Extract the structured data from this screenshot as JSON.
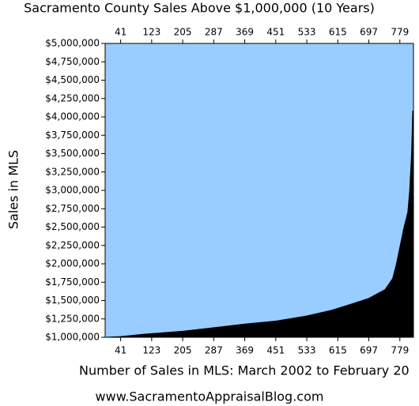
{
  "chart_data": {
    "type": "area",
    "title": "Sacramento County Sales Above $1,000,000 (10 Years)",
    "x_label": "Number of Sales in MLS: March 2002 to February 20",
    "y_label": "Sales in MLS",
    "footer": "www.SacramentoAppraisalBlog.com",
    "background": "#99ccff",
    "color": "#000000",
    "x": [
      0,
      41,
      100,
      200,
      287,
      369,
      451,
      533,
      600,
      650,
      697,
      740,
      760,
      770,
      780,
      790,
      800,
      805,
      810,
      813,
      815
    ],
    "values": [
      1000000,
      1010000,
      1040000,
      1080000,
      1130000,
      1180000,
      1220000,
      1290000,
      1370000,
      1450000,
      1530000,
      1650000,
      1800000,
      2000000,
      2250000,
      2500000,
      2700000,
      3000000,
      3500000,
      4080000,
      4080000
    ],
    "xlim": [
      0,
      815
    ],
    "ylim": [
      1000000,
      5000000
    ],
    "xticks": [
      41,
      123,
      205,
      287,
      369,
      451,
      533,
      615,
      697,
      779
    ],
    "yticks": [
      {
        "value": 1000000,
        "label": "$1,000,000"
      },
      {
        "value": 1250000,
        "label": "$1,250,000"
      },
      {
        "value": 1500000,
        "label": "$1,500,000"
      },
      {
        "value": 1750000,
        "label": "$1,750,000"
      },
      {
        "value": 2000000,
        "label": "$2,000,000"
      },
      {
        "value": 2250000,
        "label": "$2,250,000"
      },
      {
        "value": 2500000,
        "label": "$2,500,000"
      },
      {
        "value": 2750000,
        "label": "$2,750,000"
      },
      {
        "value": 3000000,
        "label": "$3,000,000"
      },
      {
        "value": 3250000,
        "label": "$3,250,000"
      },
      {
        "value": 3500000,
        "label": "$3,500,000"
      },
      {
        "value": 3750000,
        "label": "$3,750,000"
      },
      {
        "value": 4000000,
        "label": "$4,000,000"
      },
      {
        "value": 4250000,
        "label": "$4,250,000"
      },
      {
        "value": 4500000,
        "label": "$4,500,000"
      },
      {
        "value": 4750000,
        "label": "$4,750,000"
      },
      {
        "value": 5000000,
        "label": "$5,000,000"
      }
    ]
  }
}
